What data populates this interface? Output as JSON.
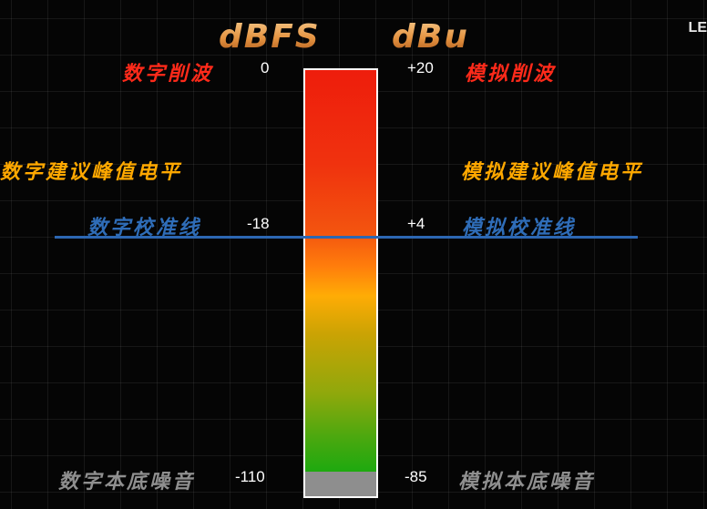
{
  "headers": {
    "dbfs": "dBFS",
    "dbu": "dBu"
  },
  "logo_text": "LE",
  "digital": {
    "clip": "数字削波",
    "recommended_peak": "数字建议峰值电平",
    "calibration": "数字校准线",
    "noise_floor": "数字本底噪音"
  },
  "analog": {
    "clip": "模拟削波",
    "recommended_peak": "模拟建议峰值电平",
    "calibration": "模拟校准线",
    "noise_floor": "模拟本底噪音"
  },
  "dbfs_values": {
    "clip": "0",
    "calibration": "-18",
    "noise_floor": "-110"
  },
  "dbu_values": {
    "clip": "+20",
    "calibration": "+4",
    "noise_floor": "-85"
  },
  "colors": {
    "clip_red": "#ff2a1a",
    "peak_orange": "#ffa800",
    "calibration_blue": "#2f6db8",
    "noise_gray": "#8f8f8f",
    "header_gold": "#e3913f"
  }
}
